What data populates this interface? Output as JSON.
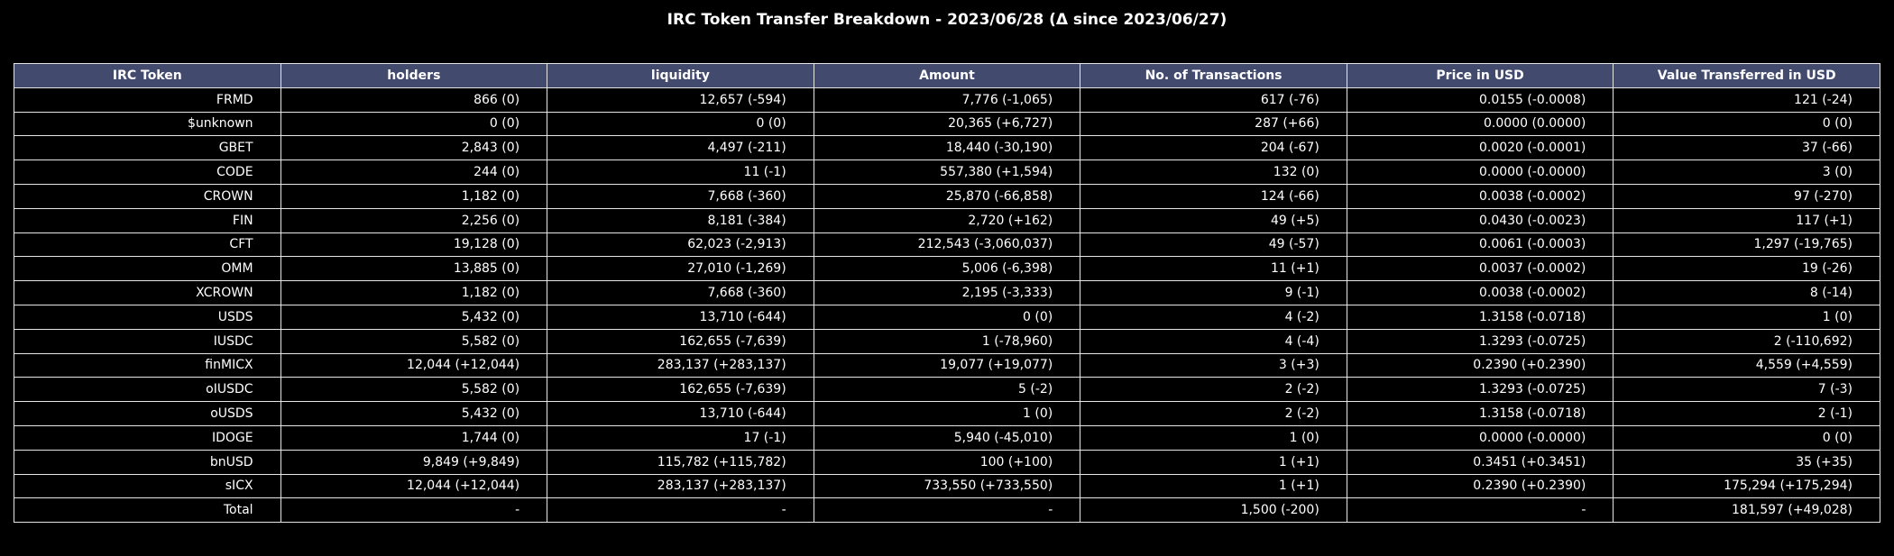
{
  "chart_data": {
    "type": "table",
    "title": "IRC Token Transfer Breakdown - 2023/06/28 (Δ since 2023/06/27)",
    "columns": [
      "IRC Token",
      "holders",
      "liquidity",
      "Amount",
      "No. of Transactions",
      "Price in USD",
      "Value Transferred in USD"
    ],
    "rows": [
      [
        "FRMD",
        "866 (0)",
        "12,657 (-594)",
        "7,776 (-1,065)",
        "617 (-76)",
        "0.0155 (-0.0008)",
        "121 (-24)"
      ],
      [
        "$unknown",
        "0 (0)",
        "0 (0)",
        "20,365 (+6,727)",
        "287 (+66)",
        "0.0000 (0.0000)",
        "0 (0)"
      ],
      [
        "GBET",
        "2,843 (0)",
        "4,497 (-211)",
        "18,440 (-30,190)",
        "204 (-67)",
        "0.0020 (-0.0001)",
        "37 (-66)"
      ],
      [
        "CODE",
        "244 (0)",
        "11 (-1)",
        "557,380 (+1,594)",
        "132 (0)",
        "0.0000 (-0.0000)",
        "3 (0)"
      ],
      [
        "CROWN",
        "1,182 (0)",
        "7,668 (-360)",
        "25,870 (-66,858)",
        "124 (-66)",
        "0.0038 (-0.0002)",
        "97 (-270)"
      ],
      [
        "FIN",
        "2,256 (0)",
        "8,181 (-384)",
        "2,720 (+162)",
        "49 (+5)",
        "0.0430 (-0.0023)",
        "117 (+1)"
      ],
      [
        "CFT",
        "19,128 (0)",
        "62,023 (-2,913)",
        "212,543 (-3,060,037)",
        "49 (-57)",
        "0.0061 (-0.0003)",
        "1,297 (-19,765)"
      ],
      [
        "OMM",
        "13,885 (0)",
        "27,010 (-1,269)",
        "5,006 (-6,398)",
        "11 (+1)",
        "0.0037 (-0.0002)",
        "19 (-26)"
      ],
      [
        "XCROWN",
        "1,182 (0)",
        "7,668 (-360)",
        "2,195 (-3,333)",
        "9 (-1)",
        "0.0038 (-0.0002)",
        "8 (-14)"
      ],
      [
        "USDS",
        "5,432 (0)",
        "13,710 (-644)",
        "0 (0)",
        "4 (-2)",
        "1.3158 (-0.0718)",
        "1 (0)"
      ],
      [
        "IUSDC",
        "5,582 (0)",
        "162,655 (-7,639)",
        "1 (-78,960)",
        "4 (-4)",
        "1.3293 (-0.0725)",
        "2 (-110,692)"
      ],
      [
        "finMICX",
        "12,044 (+12,044)",
        "283,137 (+283,137)",
        "19,077 (+19,077)",
        "3 (+3)",
        "0.2390 (+0.2390)",
        "4,559 (+4,559)"
      ],
      [
        "oIUSDC",
        "5,582 (0)",
        "162,655 (-7,639)",
        "5 (-2)",
        "2 (-2)",
        "1.3293 (-0.0725)",
        "7 (-3)"
      ],
      [
        "oUSDS",
        "5,432 (0)",
        "13,710 (-644)",
        "1 (0)",
        "2 (-2)",
        "1.3158 (-0.0718)",
        "2 (-1)"
      ],
      [
        "IDOGE",
        "1,744 (0)",
        "17 (-1)",
        "5,940 (-45,010)",
        "1 (0)",
        "0.0000 (-0.0000)",
        "0 (0)"
      ],
      [
        "bnUSD",
        "9,849 (+9,849)",
        "115,782 (+115,782)",
        "100 (+100)",
        "1 (+1)",
        "0.3451 (+0.3451)",
        "35 (+35)"
      ],
      [
        "sICX",
        "12,044 (+12,044)",
        "283,137 (+283,137)",
        "733,550 (+733,550)",
        "1 (+1)",
        "0.2390 (+0.2390)",
        "175,294 (+175,294)"
      ],
      [
        "Total",
        "-",
        "-",
        "-",
        "1,500 (-200)",
        "-",
        "181,597 (+49,028)"
      ]
    ],
    "colors": {
      "background": "#000000",
      "header_fill": "#424a6e",
      "grid_line": "#e6e6e6",
      "text": "#ffffff"
    }
  }
}
